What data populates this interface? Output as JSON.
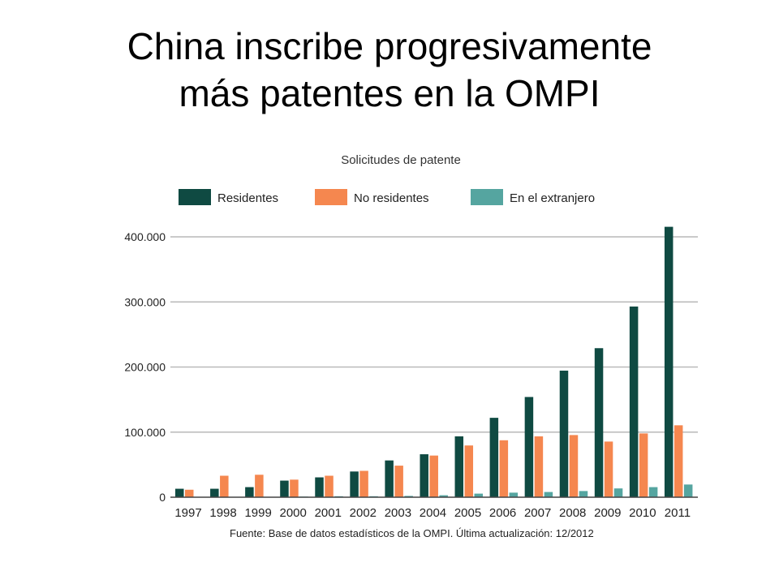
{
  "slide": {
    "title_line1": "China inscribe progresivamente",
    "title_line2": "más patentes en la OMPI"
  },
  "chart_data": {
    "type": "bar",
    "title": "Solicitudes de patente",
    "categories": [
      "1997",
      "1998",
      "1999",
      "2000",
      "2001",
      "2002",
      "2003",
      "2004",
      "2005",
      "2006",
      "2007",
      "2008",
      "2009",
      "2010",
      "2011"
    ],
    "series": [
      {
        "name": "Residentes",
        "color": "#0f4a42",
        "values": [
          13000,
          13000,
          15500,
          25500,
          30500,
          39500,
          56500,
          66000,
          93500,
          122000,
          154000,
          194500,
          229000,
          293000,
          415500
        ]
      },
      {
        "name": "No residentes",
        "color": "#f5874f",
        "values": [
          11500,
          33000,
          34500,
          27000,
          33000,
          40500,
          48500,
          64000,
          79500,
          87500,
          93500,
          95500,
          85500,
          98000,
          110500
        ]
      },
      {
        "name": "En el extranjero",
        "color": "#55a5a0",
        "values": [
          500,
          500,
          500,
          1000,
          1500,
          1500,
          2000,
          3000,
          5500,
          7000,
          8000,
          9500,
          13500,
          15500,
          19500
        ]
      }
    ],
    "yticks": [
      {
        "value": 0,
        "label": "0"
      },
      {
        "value": 100000,
        "label": "100.000"
      },
      {
        "value": 200000,
        "label": "200.000"
      },
      {
        "value": 300000,
        "label": "300.000"
      },
      {
        "value": 400000,
        "label": "400.000"
      }
    ],
    "ylim": [
      0,
      420000
    ],
    "grid": true,
    "legend_position": "top",
    "source": "Fuente:  Base de datos estadísticos de la OMPI.  Última actualización: 12/2012"
  }
}
